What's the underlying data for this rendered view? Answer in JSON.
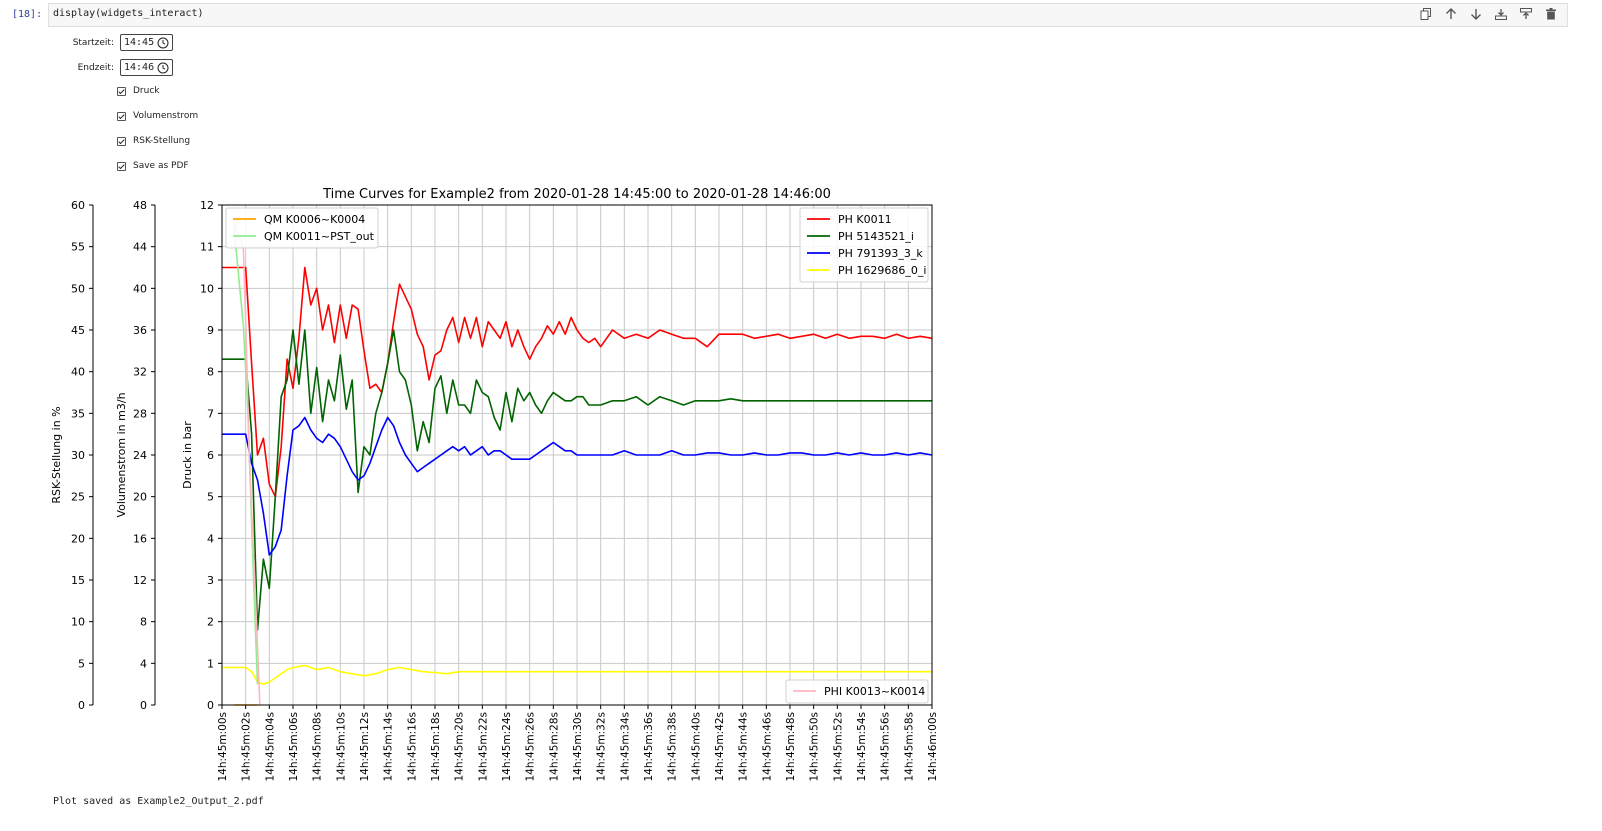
{
  "cell": {
    "prompt": "[18]:",
    "code": "display(widgets_interact)"
  },
  "toolbar": {
    "icons": [
      "copy-icon",
      "move-up-icon",
      "move-down-icon",
      "insert-below-icon",
      "insert-above-icon",
      "delete-icon"
    ]
  },
  "widgets": {
    "start_label": "Startzeit:",
    "start_value": "14:45",
    "end_label": "Endzeit:",
    "end_value": "14:46",
    "checkboxes": [
      {
        "label": "Druck",
        "checked": true
      },
      {
        "label": "Volumenstrom",
        "checked": true
      },
      {
        "label": "RSK-Stellung",
        "checked": true
      },
      {
        "label": "Save as PDF",
        "checked": true
      }
    ]
  },
  "output_message": "Plot saved as Example2_Output_2.pdf",
  "chart_data": {
    "type": "line",
    "title": "Time Curves for Example2 from 2020-01-28 14:45:00 to 2020-01-28 14:46:00",
    "x_range": [
      "14h:45m:00s",
      "14h:46m:00s"
    ],
    "x_ticks": [
      "14h:45m:00s",
      "14h:45m:02s",
      "14h:45m:04s",
      "14h:45m:06s",
      "14h:45m:08s",
      "14h:45m:10s",
      "14h:45m:12s",
      "14h:45m:14s",
      "14h:45m:16s",
      "14h:45m:18s",
      "14h:45m:20s",
      "14h:45m:22s",
      "14h:45m:24s",
      "14h:45m:26s",
      "14h:45m:28s",
      "14h:45m:30s",
      "14h:45m:32s",
      "14h:45m:34s",
      "14h:45m:36s",
      "14h:45m:38s",
      "14h:45m:40s",
      "14h:45m:42s",
      "14h:45m:44s",
      "14h:45m:46s",
      "14h:45m:48s",
      "14h:45m:50s",
      "14h:45m:52s",
      "14h:45m:54s",
      "14h:45m:56s",
      "14h:45m:58s",
      "14h:46m:00s"
    ],
    "axes": [
      {
        "label": "Druck in bar",
        "range": [
          0,
          12
        ],
        "ticks": [
          "0",
          "1",
          "2",
          "3",
          "4",
          "5",
          "6",
          "7",
          "8",
          "9",
          "10",
          "11",
          "12"
        ]
      },
      {
        "label": "Volumenstrom in m3/h",
        "range": [
          0,
          48
        ],
        "ticks": [
          "0",
          "4",
          "8",
          "12",
          "16",
          "20",
          "24",
          "28",
          "32",
          "36",
          "40",
          "44",
          "48"
        ]
      },
      {
        "label": "RSK-Stellung in %",
        "range": [
          0,
          60
        ],
        "ticks": [
          "0",
          "5",
          "10",
          "15",
          "20",
          "25",
          "30",
          "35",
          "40",
          "45",
          "50",
          "55",
          "60"
        ]
      }
    ],
    "grid": true,
    "legends": [
      {
        "position": "upper-left",
        "entries": [
          {
            "name": "QM K0006~K0004",
            "color": "#ffa500"
          },
          {
            "name": "QM K0011~PST_out",
            "color": "#90ee90"
          }
        ]
      },
      {
        "position": "upper-right",
        "entries": [
          {
            "name": "PH K0011",
            "color": "#ff0000"
          },
          {
            "name": "PH 5143521_i",
            "color": "#006400"
          },
          {
            "name": "PH 791393_3_k",
            "color": "#0000ff"
          },
          {
            "name": "PH 1629686_0_i",
            "color": "#ffff00"
          }
        ]
      },
      {
        "position": "lower-right",
        "entries": [
          {
            "name": "PHI K0013~K0014",
            "color": "#ffb6c1"
          }
        ]
      }
    ],
    "series": [
      {
        "name": "PH K0011",
        "axis": "Druck in bar",
        "color": "#ff0000",
        "x": [
          0,
          1,
          2,
          2.5,
          3,
          3.5,
          4,
          4.5,
          5,
          5.5,
          6,
          6.5,
          7,
          7.5,
          8,
          8.5,
          9,
          9.5,
          10,
          10.5,
          11,
          11.5,
          12,
          12.5,
          13,
          13.5,
          14,
          14.5,
          15,
          15.5,
          16,
          16.5,
          17,
          17.5,
          18,
          18.5,
          19,
          19.5,
          20,
          20.5,
          21,
          21.5,
          22,
          22.5,
          23,
          23.5,
          24,
          24.5,
          25,
          25.5,
          26,
          26.5,
          27,
          27.5,
          28,
          28.5,
          29,
          29.5,
          30,
          30.5,
          31,
          31.5,
          32,
          33,
          34,
          35,
          36,
          37,
          38,
          39,
          40,
          41,
          42,
          43,
          44,
          45,
          46,
          47,
          48,
          49,
          50,
          51,
          52,
          53,
          54,
          55,
          56,
          57,
          58,
          59,
          60
        ],
        "y": [
          10.5,
          10.5,
          10.5,
          8.2,
          6,
          6.4,
          5.3,
          5.0,
          6.2,
          8.3,
          7.6,
          8.8,
          10.5,
          9.6,
          10,
          9,
          9.6,
          8.7,
          9.6,
          8.8,
          9.6,
          9.5,
          8.5,
          7.6,
          7.7,
          7.5,
          8.2,
          9.2,
          10.1,
          9.8,
          9.5,
          8.9,
          8.6,
          7.8,
          8.4,
          8.5,
          9,
          9.3,
          8.7,
          9.3,
          8.8,
          9.3,
          8.6,
          9.2,
          9.0,
          8.8,
          9.2,
          8.6,
          9.0,
          8.6,
          8.3,
          8.6,
          8.8,
          9.1,
          8.9,
          9.2,
          8.9,
          9.3,
          9.0,
          8.8,
          8.7,
          8.8,
          8.6,
          9.0,
          8.8,
          8.9,
          8.8,
          9.0,
          8.9,
          8.8,
          8.8,
          8.6,
          8.9,
          8.9,
          8.9,
          8.8,
          8.85,
          8.9,
          8.8,
          8.85,
          8.9,
          8.8,
          8.9,
          8.8,
          8.85,
          8.85,
          8.8,
          8.9,
          8.8,
          8.85,
          8.8
        ]
      },
      {
        "name": "PH 5143521_i",
        "axis": "Druck in bar",
        "color": "#006400",
        "x": [
          0,
          1,
          2,
          2.5,
          3,
          3.5,
          4,
          4.5,
          5,
          5.5,
          6,
          6.5,
          7,
          7.5,
          8,
          8.5,
          9,
          9.5,
          10,
          10.5,
          11,
          11.5,
          12,
          12.5,
          13,
          13.5,
          14,
          14.5,
          15,
          15.5,
          16,
          16.5,
          17,
          17.5,
          18,
          18.5,
          19,
          19.5,
          20,
          20.5,
          21,
          21.5,
          22,
          22.5,
          23,
          23.5,
          24,
          24.5,
          25,
          25.5,
          26,
          26.5,
          27,
          27.5,
          28,
          28.5,
          29,
          29.5,
          30,
          30.5,
          31,
          31.5,
          32,
          33,
          34,
          35,
          36,
          37,
          38,
          39,
          40,
          41,
          42,
          43,
          44,
          45,
          46,
          47,
          48,
          49,
          50,
          51,
          52,
          53,
          54,
          55,
          56,
          57,
          58,
          59,
          60
        ],
        "y": [
          8.3,
          8.3,
          8.3,
          6.5,
          1.8,
          3.5,
          2.8,
          5.0,
          7.4,
          7.8,
          9.0,
          7.7,
          9.0,
          7.0,
          8.1,
          6.8,
          7.8,
          7.3,
          8.4,
          7.1,
          7.8,
          5.1,
          6.2,
          6.0,
          7.0,
          7.5,
          8.2,
          9.0,
          8.0,
          7.8,
          7.2,
          6.1,
          6.8,
          6.3,
          7.6,
          7.9,
          7.0,
          7.8,
          7.2,
          7.2,
          7.0,
          7.8,
          7.5,
          7.4,
          6.9,
          6.6,
          7.5,
          6.8,
          7.6,
          7.3,
          7.5,
          7.2,
          7.0,
          7.3,
          7.5,
          7.4,
          7.3,
          7.3,
          7.4,
          7.4,
          7.2,
          7.2,
          7.2,
          7.3,
          7.3,
          7.4,
          7.2,
          7.4,
          7.3,
          7.2,
          7.3,
          7.3,
          7.3,
          7.35,
          7.3,
          7.3,
          7.3,
          7.3,
          7.3,
          7.3,
          7.3,
          7.3,
          7.3,
          7.3,
          7.3,
          7.3,
          7.3,
          7.3,
          7.3,
          7.3,
          7.3
        ]
      },
      {
        "name": "PH 791393_3_k",
        "axis": "Druck in bar",
        "color": "#0000ff",
        "x": [
          0,
          1,
          2,
          2.5,
          3,
          3.5,
          4,
          4.5,
          5,
          5.5,
          6,
          6.5,
          7,
          7.5,
          8,
          8.5,
          9,
          9.5,
          10,
          10.5,
          11,
          11.5,
          12,
          12.5,
          13,
          13.5,
          14,
          14.5,
          15,
          15.5,
          16,
          16.5,
          17,
          17.5,
          18,
          18.5,
          19,
          19.5,
          20,
          20.5,
          21,
          21.5,
          22,
          22.5,
          23,
          23.5,
          24,
          24.5,
          25,
          25.5,
          26,
          26.5,
          27,
          27.5,
          28,
          28.5,
          29,
          29.5,
          30,
          30.5,
          31,
          31.5,
          32,
          33,
          34,
          35,
          36,
          37,
          38,
          39,
          40,
          41,
          42,
          43,
          44,
          45,
          46,
          47,
          48,
          49,
          50,
          51,
          52,
          53,
          54,
          55,
          56,
          57,
          58,
          59,
          60
        ],
        "y": [
          6.5,
          6.5,
          6.5,
          5.8,
          5.4,
          4.6,
          3.6,
          3.8,
          4.2,
          5.5,
          6.6,
          6.7,
          6.9,
          6.6,
          6.4,
          6.3,
          6.5,
          6.4,
          6.2,
          5.9,
          5.6,
          5.4,
          5.5,
          5.8,
          6.2,
          6.6,
          6.9,
          6.7,
          6.3,
          6.0,
          5.8,
          5.6,
          5.7,
          5.8,
          5.9,
          6.0,
          6.1,
          6.2,
          6.1,
          6.2,
          6.0,
          6.1,
          6.2,
          6.0,
          6.1,
          6.1,
          6.0,
          5.9,
          5.9,
          5.9,
          5.9,
          6.0,
          6.1,
          6.2,
          6.3,
          6.2,
          6.1,
          6.1,
          6.0,
          6.0,
          6.0,
          6.0,
          6.0,
          6.0,
          6.1,
          6.0,
          6.0,
          6.0,
          6.1,
          6.0,
          6.0,
          6.05,
          6.05,
          6.0,
          6.0,
          6.05,
          6.0,
          6.0,
          6.05,
          6.05,
          6.0,
          6.0,
          6.05,
          6.0,
          6.05,
          6.0,
          6.0,
          6.05,
          6.0,
          6.05,
          6.0
        ]
      },
      {
        "name": "PH 1629686_0_i",
        "axis": "Druck in bar",
        "color": "#ffff00",
        "x": [
          0,
          1,
          2,
          2.5,
          3,
          3.5,
          4,
          4.5,
          5,
          5.5,
          6,
          7,
          8,
          9,
          10,
          11,
          12,
          13,
          14,
          15,
          16,
          17,
          18,
          19,
          20,
          22,
          24,
          26,
          28,
          30,
          32,
          34,
          36,
          38,
          40,
          42,
          44,
          46,
          48,
          50,
          52,
          54,
          56,
          58,
          60
        ],
        "y": [
          0.9,
          0.9,
          0.9,
          0.8,
          0.55,
          0.5,
          0.55,
          0.65,
          0.75,
          0.85,
          0.9,
          0.95,
          0.85,
          0.9,
          0.8,
          0.75,
          0.7,
          0.75,
          0.85,
          0.9,
          0.85,
          0.8,
          0.78,
          0.75,
          0.8,
          0.8,
          0.8,
          0.8,
          0.8,
          0.8,
          0.8,
          0.8,
          0.8,
          0.8,
          0.8,
          0.8,
          0.8,
          0.8,
          0.8,
          0.8,
          0.8,
          0.8,
          0.8,
          0.8,
          0.8
        ]
      },
      {
        "name": "QM K0011~PST_out",
        "axis": "Volumenstrom in m3/h",
        "color": "#90ee90",
        "x": [
          1,
          1.8,
          2.2,
          2.6,
          3.0
        ],
        "y": [
          46,
          36.5,
          28,
          14,
          2
        ]
      },
      {
        "name": "QM K0006~K0004",
        "axis": "Volumenstrom in m3/h",
        "color": "#ffa500",
        "x": [
          1,
          2,
          3
        ],
        "y": [
          0,
          0,
          0
        ]
      },
      {
        "name": "PHI K0013~K0014",
        "axis": "RSK-Stellung in %",
        "color": "#ffb6c1",
        "x": [
          1,
          1.8,
          2,
          2.3,
          2.8,
          3.2
        ],
        "y": [
          58,
          55,
          46,
          30,
          14,
          0
        ]
      }
    ]
  }
}
